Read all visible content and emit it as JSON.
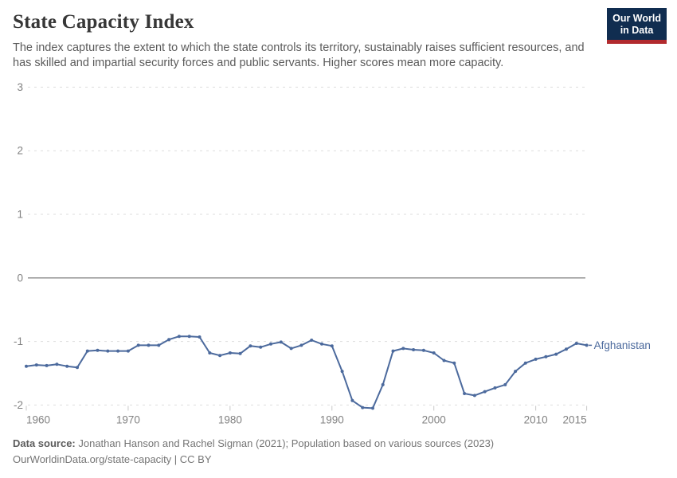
{
  "header": {
    "title": "State Capacity Index",
    "subtitle": "The index captures the extent to which the state controls its territory, sustainably raises sufficient resources, and has skilled and impartial security forces and public servants. Higher scores mean more capacity.",
    "logo": {
      "line1": "Our World",
      "line2": "in Data"
    }
  },
  "chart_data": {
    "type": "line",
    "title": "State Capacity Index",
    "x": [
      1960,
      1961,
      1962,
      1963,
      1964,
      1965,
      1966,
      1967,
      1968,
      1969,
      1970,
      1971,
      1972,
      1973,
      1974,
      1975,
      1976,
      1977,
      1978,
      1979,
      1980,
      1981,
      1982,
      1983,
      1984,
      1985,
      1986,
      1987,
      1988,
      1989,
      1990,
      1991,
      1992,
      1993,
      1994,
      1995,
      1996,
      1997,
      1998,
      1999,
      2000,
      2001,
      2002,
      2003,
      2004,
      2005,
      2006,
      2007,
      2008,
      2009,
      2010,
      2011,
      2012,
      2013,
      2014,
      2015
    ],
    "series": [
      {
        "name": "Afghanistan",
        "color": "#4C6A9D",
        "values": [
          -1.39,
          -1.37,
          -1.38,
          -1.36,
          -1.39,
          -1.41,
          -1.15,
          -1.14,
          -1.15,
          -1.15,
          -1.15,
          -1.06,
          -1.06,
          -1.06,
          -0.97,
          -0.92,
          -0.92,
          -0.93,
          -1.18,
          -1.22,
          -1.18,
          -1.19,
          -1.07,
          -1.09,
          -1.04,
          -1.01,
          -1.11,
          -1.06,
          -0.98,
          -1.04,
          -1.07,
          -1.47,
          -1.93,
          -2.04,
          -2.05,
          -1.68,
          -1.15,
          -1.11,
          -1.13,
          -1.14,
          -1.18,
          -1.3,
          -1.34,
          -1.82,
          -1.85,
          -1.79,
          -1.73,
          -1.68,
          -1.47,
          -1.34,
          -1.28,
          -1.24,
          -1.2,
          -1.12,
          -1.03,
          -1.06
        ]
      }
    ],
    "xticks": [
      1960,
      1970,
      1980,
      1990,
      2000,
      2010,
      2015
    ],
    "yticks": [
      3,
      2,
      1,
      0,
      -1,
      -2
    ],
    "xlim": [
      1960,
      2015
    ],
    "ylim": [
      -2.1,
      3
    ],
    "grid": "horizontal-dashed",
    "legend": "entity-label-right",
    "entity_label": "Afghanistan"
  },
  "footer": {
    "datasource_label": "Data source:",
    "datasource_text": " Jonathan Hanson and Rachel Sigman (2021); Population based on various sources (2023)",
    "url_line": "OurWorldinData.org/state-capacity | CC BY"
  },
  "colors": {
    "line": "#4C6A9D",
    "grid": "#dddddd",
    "zero_line": "#9e9e9e",
    "tick": "#c8c8c8",
    "axis_text": "#828282",
    "logo_bg": "#102d50",
    "logo_stripe": "#b22a2e"
  }
}
